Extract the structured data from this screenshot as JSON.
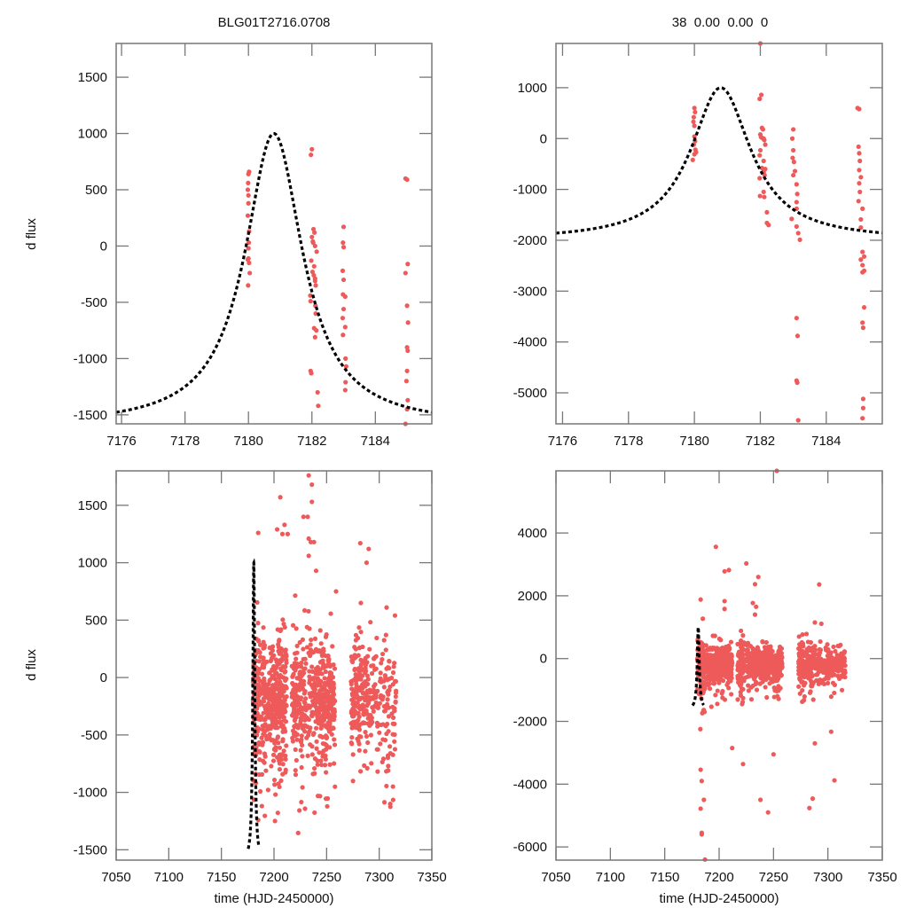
{
  "figure": {
    "title_left": "BLG01T2716.0708",
    "title_right": "38  0.00  0.00  0",
    "point_color": "#ee5a5a",
    "model_color": "#000000"
  },
  "chart_data": [
    {
      "id": "top-left",
      "type": "scatter",
      "title": "BLG01T2716.0708",
      "xlabel": "",
      "ylabel": "d flux",
      "xlim": [
        7175.83,
        7185.78
      ],
      "ylim": [
        -1580,
        1800
      ],
      "xticks": [
        7176,
        7178,
        7180,
        7182,
        7184
      ],
      "yticks": [
        -1500,
        -1000,
        -500,
        0,
        500,
        1000,
        1500
      ],
      "grid": false,
      "model": {
        "type": "line",
        "style": "dashed",
        "t0": 7180.8,
        "peak": 1000,
        "baseline": -1600,
        "tE": 1.4
      },
      "points": [
        [
          7180.0,
          640
        ],
        [
          7180.02,
          660
        ],
        [
          7179.99,
          560
        ],
        [
          7179.98,
          500
        ],
        [
          7180.0,
          450
        ],
        [
          7180.0,
          380
        ],
        [
          7179.98,
          270
        ],
        [
          7180.02,
          130
        ],
        [
          7180.01,
          30
        ],
        [
          7180.0,
          -20
        ],
        [
          7179.98,
          -120
        ],
        [
          7180.02,
          -150
        ],
        [
          7180.04,
          -240
        ],
        [
          7179.99,
          -350
        ],
        [
          7180.0,
          -110
        ],
        [
          7182.0,
          860
        ],
        [
          7181.97,
          810
        ],
        [
          7182.05,
          150
        ],
        [
          7182.08,
          120
        ],
        [
          7182.0,
          80
        ],
        [
          7182.03,
          40
        ],
        [
          7182.1,
          0
        ],
        [
          7182.04,
          30
        ],
        [
          7182.1,
          -290
        ],
        [
          7181.98,
          -130
        ],
        [
          7182.07,
          -180
        ],
        [
          7182.02,
          -230
        ],
        [
          7182.06,
          -260
        ],
        [
          7182.1,
          -310
        ],
        [
          7182.15,
          -50
        ],
        [
          7182.12,
          -350
        ],
        [
          7181.95,
          -440
        ],
        [
          7181.96,
          -490
        ],
        [
          7182.11,
          -530
        ],
        [
          7182.12,
          -600
        ],
        [
          7182.07,
          -730
        ],
        [
          7182.14,
          -750
        ],
        [
          7182.1,
          -810
        ],
        [
          7181.96,
          -1110
        ],
        [
          7181.98,
          -1130
        ],
        [
          7182.18,
          -1300
        ],
        [
          7182.2,
          -1420
        ],
        [
          7183.0,
          170
        ],
        [
          7182.98,
          30
        ],
        [
          7183.0,
          -10
        ],
        [
          7182.97,
          -220
        ],
        [
          7183.0,
          -300
        ],
        [
          7182.98,
          -430
        ],
        [
          7183.05,
          -450
        ],
        [
          7183.0,
          -560
        ],
        [
          7182.97,
          -640
        ],
        [
          7183.05,
          -720
        ],
        [
          7182.98,
          -790
        ],
        [
          7183.06,
          -1000
        ],
        [
          7183.08,
          -1070
        ],
        [
          7183.06,
          -1210
        ],
        [
          7183.05,
          -1280
        ],
        [
          7184.95,
          600
        ],
        [
          7185.0,
          590
        ],
        [
          7185.02,
          -160
        ],
        [
          7184.95,
          -240
        ],
        [
          7185.0,
          -530
        ],
        [
          7185.03,
          -680
        ],
        [
          7185.0,
          -900
        ],
        [
          7185.02,
          -930
        ],
        [
          7185.0,
          -1110
        ],
        [
          7184.98,
          -1200
        ],
        [
          7185.02,
          -1370
        ],
        [
          7185.0,
          -1450
        ],
        [
          7184.95,
          -1580
        ]
      ]
    },
    {
      "id": "top-right",
      "type": "scatter",
      "title": "38  0.00  0.00  0",
      "xlabel": "",
      "ylabel": "",
      "xlim": [
        7175.8,
        7185.7
      ],
      "ylim": [
        -5610,
        1870
      ],
      "xticks": [
        7176,
        7178,
        7180,
        7182,
        7184
      ],
      "yticks": [
        -5000,
        -4000,
        -3000,
        -2000,
        -1000,
        0,
        1000
      ],
      "grid": false,
      "model": {
        "type": "line",
        "style": "dashed",
        "t0": 7180.8,
        "peak": 1000,
        "baseline": -2000,
        "tE": 1.4
      },
      "points": [
        [
          7182.0,
          1870
        ],
        [
          7180.0,
          600
        ],
        [
          7180.02,
          520
        ],
        [
          7179.98,
          420
        ],
        [
          7179.97,
          330
        ],
        [
          7180.0,
          250
        ],
        [
          7180.0,
          40
        ],
        [
          7180.02,
          -50
        ],
        [
          7179.98,
          -120
        ],
        [
          7180.03,
          -220
        ],
        [
          7180.05,
          -270
        ],
        [
          7180.0,
          -310
        ],
        [
          7179.95,
          -420
        ],
        [
          7182.03,
          860
        ],
        [
          7181.98,
          780
        ],
        [
          7182.05,
          210
        ],
        [
          7182.08,
          180
        ],
        [
          7182.0,
          80
        ],
        [
          7182.02,
          30
        ],
        [
          7182.06,
          10
        ],
        [
          7182.1,
          0
        ],
        [
          7182.12,
          -30
        ],
        [
          7182.15,
          -120
        ],
        [
          7182.0,
          -230
        ],
        [
          7181.98,
          -330
        ],
        [
          7182.1,
          -440
        ],
        [
          7182.05,
          -580
        ],
        [
          7182.15,
          -600
        ],
        [
          7182.1,
          -660
        ],
        [
          7182.13,
          -720
        ],
        [
          7181.98,
          -780
        ],
        [
          7182.1,
          -1050
        ],
        [
          7182.12,
          -1150
        ],
        [
          7181.99,
          -1130
        ],
        [
          7182.2,
          -1450
        ],
        [
          7182.2,
          -1660
        ],
        [
          7182.25,
          -1700
        ],
        [
          7183.0,
          180
        ],
        [
          7182.97,
          0
        ],
        [
          7183.0,
          -230
        ],
        [
          7182.98,
          -380
        ],
        [
          7183.02,
          -460
        ],
        [
          7183.05,
          -640
        ],
        [
          7183.0,
          -720
        ],
        [
          7183.1,
          -900
        ],
        [
          7183.12,
          -1090
        ],
        [
          7183.1,
          -1250
        ],
        [
          7183.1,
          -1380
        ],
        [
          7182.95,
          -1580
        ],
        [
          7183.1,
          -1730
        ],
        [
          7183.15,
          -1860
        ],
        [
          7183.2,
          -1990
        ],
        [
          7183.1,
          -3530
        ],
        [
          7183.13,
          -3880
        ],
        [
          7183.1,
          -4760
        ],
        [
          7183.12,
          -4800
        ],
        [
          7183.15,
          -5540
        ],
        [
          7184.95,
          600
        ],
        [
          7185.0,
          580
        ],
        [
          7184.98,
          -160
        ],
        [
          7185.0,
          -290
        ],
        [
          7185.02,
          -440
        ],
        [
          7185.0,
          -620
        ],
        [
          7185.05,
          -760
        ],
        [
          7185.0,
          -880
        ],
        [
          7185.02,
          -1050
        ],
        [
          7184.98,
          -1230
        ],
        [
          7185.1,
          -1380
        ],
        [
          7185.05,
          -1590
        ],
        [
          7185.05,
          -1750
        ],
        [
          7185.1,
          -2230
        ],
        [
          7185.15,
          -2320
        ],
        [
          7185.05,
          -2380
        ],
        [
          7185.1,
          -2490
        ],
        [
          7185.15,
          -2600
        ],
        [
          7185.1,
          -2630
        ],
        [
          7185.15,
          -3320
        ],
        [
          7185.1,
          -3620
        ],
        [
          7185.12,
          -3720
        ],
        [
          7185.12,
          -5120
        ],
        [
          7185.12,
          -5300
        ],
        [
          7185.1,
          -5500
        ]
      ]
    },
    {
      "id": "bottom-left",
      "type": "scatter",
      "title": "",
      "xlabel": "time (HJD-2450000)",
      "ylabel": "d flux",
      "xlim": [
        7050,
        7350
      ],
      "ylim": [
        -1590,
        1800
      ],
      "xticks": [
        7050,
        7100,
        7150,
        7200,
        7250,
        7300,
        7350
      ],
      "yticks": [
        -1500,
        -1000,
        -500,
        0,
        500,
        1000,
        1500
      ],
      "grid": false,
      "model": {
        "type": "line",
        "style": "dashed",
        "t0": 7180.8,
        "peak": 1000,
        "baseline": -1600,
        "tE": 1.4
      },
      "season_groups": [
        {
          "t_start": 7180,
          "t_end": 7187,
          "n": 130,
          "sd": 450
        },
        {
          "t_start": 7188,
          "t_end": 7198,
          "n": 110,
          "sd": 420
        },
        {
          "t_start": 7198,
          "t_end": 7212,
          "n": 260,
          "sd": 430
        },
        {
          "t_start": 7217,
          "t_end": 7223,
          "n": 90,
          "sd": 480
        },
        {
          "t_start": 7224,
          "t_end": 7240,
          "n": 150,
          "sd": 420
        },
        {
          "t_start": 7240,
          "t_end": 7258,
          "n": 260,
          "sd": 380
        },
        {
          "t_start": 7273,
          "t_end": 7287,
          "n": 150,
          "sd": 430
        },
        {
          "t_start": 7287,
          "t_end": 7316,
          "n": 170,
          "sd": 400
        }
      ],
      "outliers": [
        [
          7185,
          1260
        ],
        [
          7206,
          1570
        ],
        [
          7203,
          1290
        ],
        [
          7210,
          1330
        ],
        [
          7208,
          1250
        ],
        [
          7213,
          1250
        ],
        [
          7228,
          1400
        ],
        [
          7232,
          1400
        ],
        [
          7233,
          1760
        ],
        [
          7236,
          1680
        ],
        [
          7236,
          1530
        ],
        [
          7233,
          1210
        ],
        [
          7235,
          1180
        ],
        [
          7238,
          1180
        ],
        [
          7233,
          1060
        ],
        [
          7240,
          930
        ],
        [
          7282,
          1170
        ],
        [
          7290,
          1120
        ],
        [
          7288,
          1000
        ],
        [
          7259,
          750
        ],
        [
          7307,
          610
        ],
        [
          7315,
          540
        ]
      ]
    },
    {
      "id": "bottom-right",
      "type": "scatter",
      "title": "",
      "xlabel": "time (HJD-2450000)",
      "ylabel": "",
      "xlim": [
        7050,
        7350
      ],
      "ylim": [
        -6420,
        5980
      ],
      "xticks": [
        7050,
        7100,
        7150,
        7200,
        7250,
        7300,
        7350
      ],
      "yticks": [
        -6000,
        -4000,
        -2000,
        0,
        2000,
        4000
      ],
      "grid": false,
      "model": {
        "type": "line",
        "style": "dashed",
        "t0": 7180.8,
        "peak": 1000,
        "baseline": -1600,
        "tE": 1.4
      },
      "season_groups": [
        {
          "t_start": 7180,
          "t_end": 7187,
          "n": 130,
          "sd": 700
        },
        {
          "t_start": 7188,
          "t_end": 7198,
          "n": 110,
          "sd": 550
        },
        {
          "t_start": 7198,
          "t_end": 7212,
          "n": 260,
          "sd": 450
        },
        {
          "t_start": 7217,
          "t_end": 7223,
          "n": 90,
          "sd": 600
        },
        {
          "t_start": 7224,
          "t_end": 7240,
          "n": 150,
          "sd": 450
        },
        {
          "t_start": 7240,
          "t_end": 7258,
          "n": 260,
          "sd": 420
        },
        {
          "t_start": 7273,
          "t_end": 7287,
          "n": 150,
          "sd": 600
        },
        {
          "t_start": 7287,
          "t_end": 7316,
          "n": 170,
          "sd": 450
        }
      ],
      "outliers": [
        [
          7253,
          5980
        ],
        [
          7197,
          3560
        ],
        [
          7205,
          2780
        ],
        [
          7209,
          2820
        ],
        [
          7225,
          3030
        ],
        [
          7233,
          2370
        ],
        [
          7236,
          2600
        ],
        [
          7292,
          2360
        ],
        [
          7183,
          1880
        ],
        [
          7185,
          1270
        ],
        [
          7205,
          1830
        ],
        [
          7205,
          1580
        ],
        [
          7231,
          1770
        ],
        [
          7234,
          1650
        ],
        [
          7233,
          1400
        ],
        [
          7288,
          1150
        ],
        [
          7294,
          1110
        ],
        [
          7183,
          -3540
        ],
        [
          7184,
          -3900
        ],
        [
          7183,
          -4780
        ],
        [
          7184,
          -5550
        ],
        [
          7184,
          -5600
        ],
        [
          7187,
          -6400
        ],
        [
          7186,
          -4500
        ],
        [
          7238,
          -4500
        ],
        [
          7245,
          -4900
        ],
        [
          7250,
          -3050
        ],
        [
          7283,
          -4760
        ],
        [
          7286,
          -4460
        ],
        [
          7306,
          -3880
        ],
        [
          7212,
          -2850
        ],
        [
          7222,
          -3360
        ],
        [
          7288,
          -2700
        ],
        [
          7303,
          -2330
        ]
      ]
    }
  ]
}
